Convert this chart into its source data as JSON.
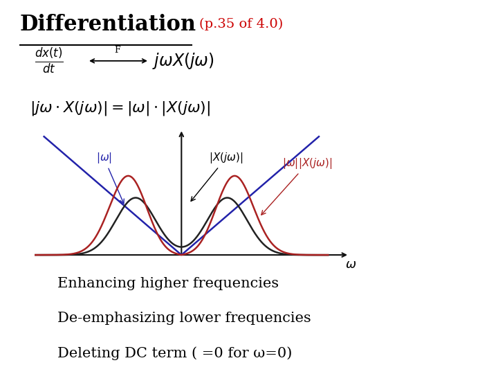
{
  "title": "Differentiation",
  "title_color": "#000000",
  "subtitle": "(p.35 of 4.0)",
  "subtitle_color": "#cc0000",
  "bg_color": "#ffffff",
  "formula1_left": "$\\frac{dx(t)}{dt}$",
  "formula1_arrow": "$\\longleftrightarrow$",
  "formula1_F": "F",
  "formula1_right": "$j\\omega X(j\\omega)$",
  "formula2": "$|j\\omega \\cdot X(j\\omega)| = |\\omega| \\cdot |X(j\\omega)|$",
  "bottom_lines": [
    "Enhancing higher frequencies",
    "De-emphasizing lower frequencies",
    "Deleting DC term ( =0 for ω=0)"
  ],
  "plot_bg": "#ffffff",
  "abs_omega_color": "#2222aa",
  "Xjw_color": "#222222",
  "product_color": "#aa2222",
  "axis_color": "#111111",
  "label_abs_omega": "$|\\omega|$",
  "label_Xjw": "$|X(j\\omega)|$",
  "label_product": "$|\\omega||X(j\\omega)|$",
  "label_omega_axis": "$\\omega$"
}
